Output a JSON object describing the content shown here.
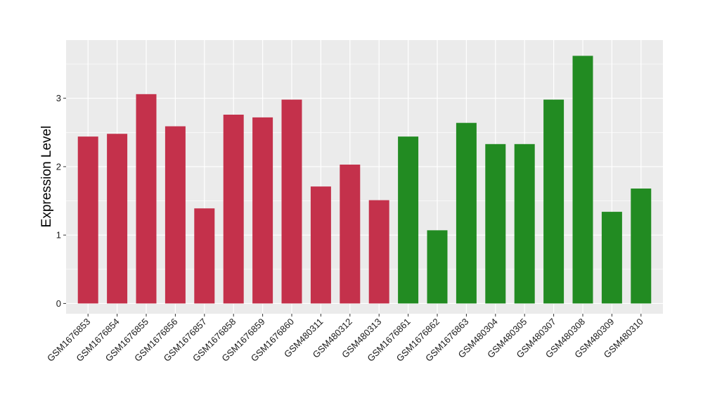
{
  "colors": {
    "panel": "#ebebeb",
    "grid": "#ffffff",
    "group_a": "#c4314b",
    "group_b": "#228b22"
  },
  "chart_data": {
    "type": "bar",
    "ylabel": "Expression Level",
    "xlabel": "",
    "ylim": [
      -0.15,
      3.85
    ],
    "yticks": [
      0,
      1,
      2,
      3
    ],
    "grid": true,
    "legend": "none",
    "categories": [
      "GSM1676853",
      "GSM1676854",
      "GSM1676855",
      "GSM1676856",
      "GSM1676857",
      "GSM1676858",
      "GSM1676859",
      "GSM1676860",
      "GSM480311",
      "GSM480312",
      "GSM480313",
      "GSM1676861",
      "GSM1676862",
      "GSM1676863",
      "GSM480304",
      "GSM480305",
      "GSM480307",
      "GSM480308",
      "GSM480309",
      "GSM480310"
    ],
    "values": [
      2.44,
      2.48,
      3.06,
      2.59,
      1.39,
      2.76,
      2.72,
      2.98,
      1.71,
      2.03,
      1.51,
      2.44,
      1.07,
      2.64,
      2.33,
      2.33,
      2.98,
      3.62,
      1.34,
      1.68
    ],
    "groups": [
      "a",
      "a",
      "a",
      "a",
      "a",
      "a",
      "a",
      "a",
      "a",
      "a",
      "a",
      "b",
      "b",
      "b",
      "b",
      "b",
      "b",
      "b",
      "b",
      "b"
    ]
  }
}
